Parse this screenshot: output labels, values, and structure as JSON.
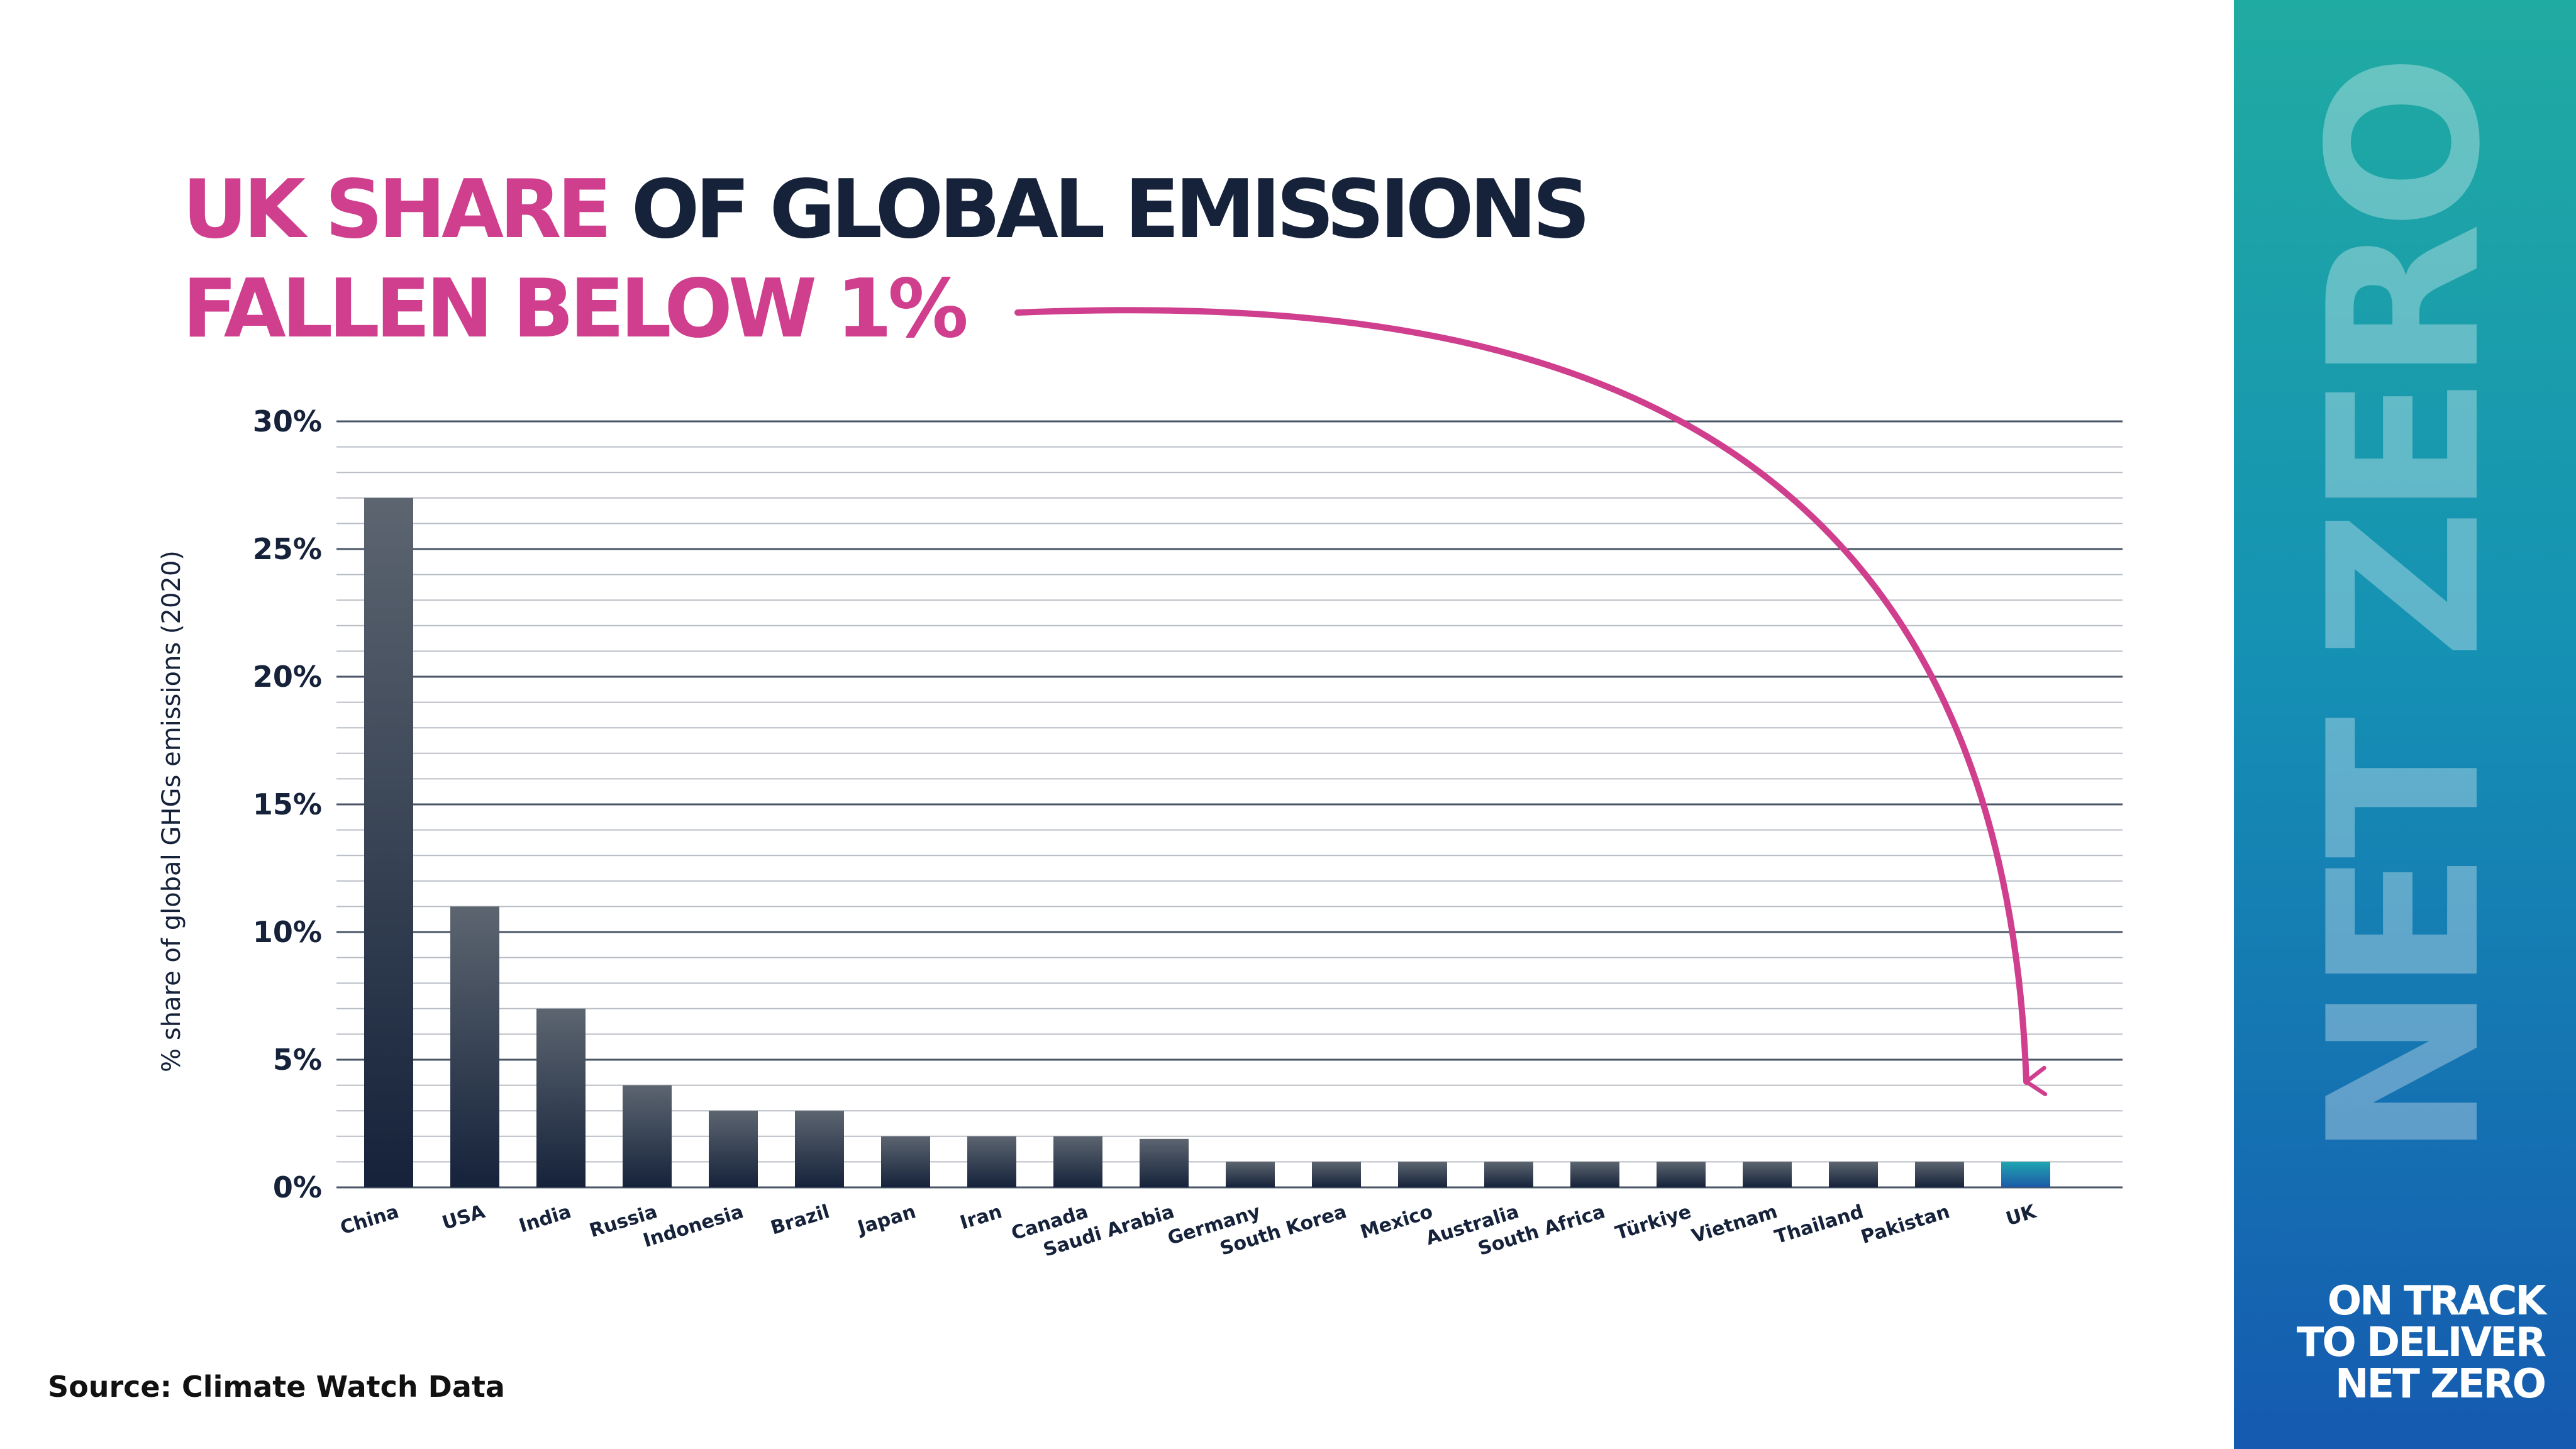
{
  "title": {
    "line1_highlight": "UK SHARE",
    "line1_rest": "OF GLOBAL EMISSIONS",
    "line2": "FALLEN BELOW 1%"
  },
  "source": "Source: Climate Watch Data",
  "side_panel": {
    "big_text": "NET ZERO",
    "tagline": [
      "ON TRACK",
      "TO DELIVER",
      "NET ZERO"
    ]
  },
  "colors": {
    "accent": "#cf3f8e",
    "dark": "#15223a",
    "panel_top": "#20aba2",
    "panel_bottom": "#155ab0",
    "uk_bar_top": "#1fa4b0",
    "uk_bar_bottom": "#1d5aa8"
  },
  "chart_data": {
    "type": "bar",
    "ylabel": "% share of global GHGs emissions (2020)",
    "ylim": [
      0,
      30
    ],
    "yticks": [
      0,
      5,
      10,
      15,
      20,
      25,
      30
    ],
    "ytick_labels": [
      "0%",
      "5%",
      "10%",
      "15%",
      "20%",
      "25%",
      "30%"
    ],
    "minor_grid_step": 1,
    "grid": true,
    "highlight_category": "UK",
    "categories": [
      "China",
      "USA",
      "India",
      "Russia",
      "Indonesia",
      "Brazil",
      "Japan",
      "Iran",
      "Canada",
      "Saudi Arabia",
      "Germany",
      "South Korea",
      "Mexico",
      "Australia",
      "South Africa",
      "Türkiye",
      "Vietnam",
      "Thailand",
      "Pakistan",
      "UK"
    ],
    "values": [
      27,
      11,
      7,
      4,
      3,
      3,
      2,
      2,
      2,
      1.9,
      1,
      1,
      1,
      1,
      1,
      1,
      1,
      1,
      1,
      1
    ]
  }
}
